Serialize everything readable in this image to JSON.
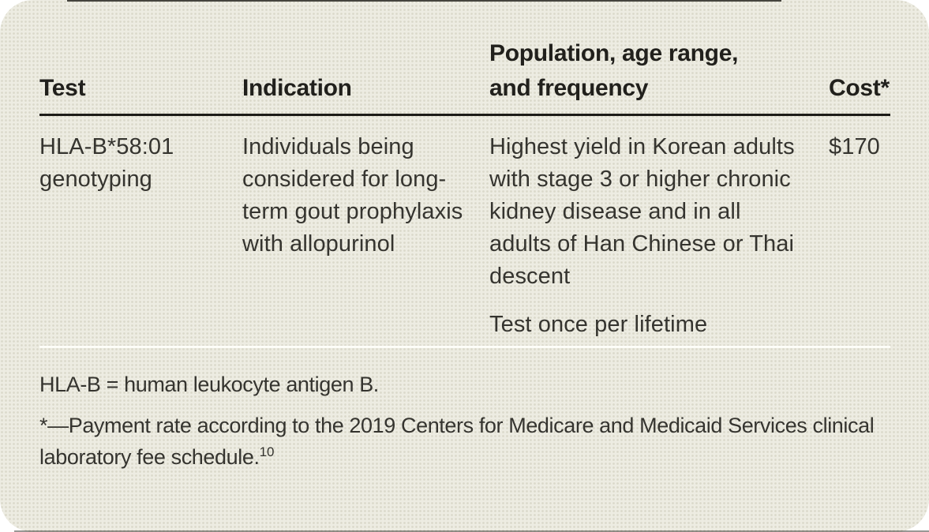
{
  "figure": {
    "kind": "journal-table",
    "background_color": "#edece2",
    "page_color": "#ffffff",
    "rule_color_dark": "#1d1c18",
    "rule_color_light": "#fdfdf8",
    "text_color": "#35342f"
  },
  "table": {
    "headers": [
      "Test",
      "Indication",
      "Population, age range,\nand frequency",
      "Cost*"
    ],
    "row": {
      "test": "HLA-B*58:01 genotyping",
      "indication": "Individuals being considered for long-term gout prophylaxis with allopurinol",
      "population": [
        "Highest yield in Korean adults with stage 3 or higher chronic kidney disease and in all adults of Han Chinese or Thai descent",
        "Test once per lifetime"
      ],
      "cost": "$170"
    },
    "footnotes": [
      {
        "text": "HLA-B = human leukocyte antigen B.",
        "ref": ""
      },
      {
        "text": "*—Payment rate according to the 2019 Centers for Medicare and Medicaid Services clinical laboratory fee schedule.",
        "ref": "10"
      }
    ]
  }
}
